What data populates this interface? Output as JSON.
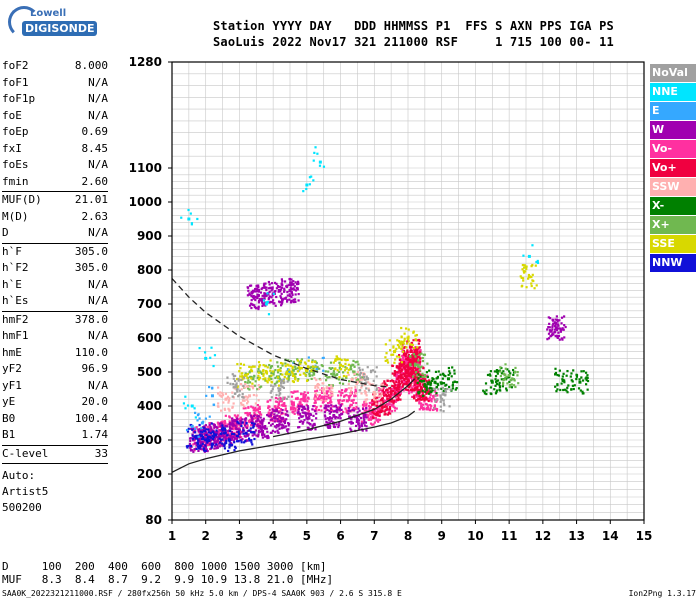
{
  "logo": {
    "line1": "Lowell",
    "line2": "DIGISONDE"
  },
  "header": {
    "line1": "Station YYYY DAY   DDD HHMMSS P1  FFS S AXN PPS IGA PS",
    "line2": "SaoLuis 2022 Nov17 321 211000 RSF     1 715 100 00- 11"
  },
  "params": [
    {
      "name": "foF2",
      "value": "8.000"
    },
    {
      "name": "foF1",
      "value": "N/A"
    },
    {
      "name": "foF1p",
      "value": "N/A"
    },
    {
      "name": "foE",
      "value": "N/A"
    },
    {
      "name": "foEp",
      "value": "0.69"
    },
    {
      "name": "fxI",
      "value": "8.45"
    },
    {
      "name": "foEs",
      "value": "N/A"
    },
    {
      "name": "fmin",
      "value": "2.60"
    },
    {
      "sep": true
    },
    {
      "name": "MUF(D)",
      "value": "21.01"
    },
    {
      "name": "M(D)",
      "value": "2.63"
    },
    {
      "name": "D",
      "value": "N/A"
    },
    {
      "sep": true
    },
    {
      "name": "h`F",
      "value": "305.0"
    },
    {
      "name": "h`F2",
      "value": "305.0"
    },
    {
      "name": "h`E",
      "value": "N/A"
    },
    {
      "name": "h`Es",
      "value": "N/A"
    },
    {
      "sep": true
    },
    {
      "name": "hmF2",
      "value": "378.0"
    },
    {
      "name": "hmF1",
      "value": "N/A"
    },
    {
      "name": "hmE",
      "value": "110.0"
    },
    {
      "name": "yF2",
      "value": "96.9"
    },
    {
      "name": "yF1",
      "value": "N/A"
    },
    {
      "name": "yE",
      "value": "20.0"
    },
    {
      "name": "B0",
      "value": "100.4"
    },
    {
      "name": "B1",
      "value": "1.74"
    },
    {
      "sep": true
    },
    {
      "name": "C-level",
      "value": "33"
    },
    {
      "sep": true
    }
  ],
  "auto_lines": [
    "Auto:",
    "Artist5",
    "500200"
  ],
  "muf_table": {
    "d_label": "D",
    "d_values": "100  200  400  600  800 1000 1500 3000 [km]",
    "muf_label": "MUF",
    "muf_values": "8.3  8.4  8.7  9.2  9.9 10.9 13.8 21.0 [MHz]"
  },
  "footer": {
    "left": "SAA0K_2022321211000.RSF / 280fx256h 50 kHz 5.0 km / DPS-4 SAA0K 903 / 2.6 S 315.8 E",
    "right": "Ion2Png 1.3.17"
  },
  "legend": [
    {
      "label": "NoVal",
      "color": "#a0a0a0"
    },
    {
      "label": "NNE",
      "color": "#00e5ff"
    },
    {
      "label": "E",
      "color": "#35a8ff"
    },
    {
      "label": "W",
      "color": "#a000b0"
    },
    {
      "label": "Vo-",
      "color": "#ff30a0"
    },
    {
      "label": "Vo+",
      "color": "#f00040"
    },
    {
      "label": "SSW",
      "color": "#ffb0b0"
    },
    {
      "label": "X-",
      "color": "#008000"
    },
    {
      "label": "X+",
      "color": "#70b850"
    },
    {
      "label": "SSE",
      "color": "#d8d800"
    },
    {
      "label": "NNW",
      "color": "#1010d8"
    }
  ],
  "chart_data": {
    "type": "scatter",
    "title": "",
    "xlabel": "",
    "ylabel": "",
    "xlim": [
      1,
      15
    ],
    "ylim": [
      80,
      1280
    ],
    "x_ticks": [
      1,
      2,
      3,
      4,
      5,
      6,
      7,
      8,
      9,
      10,
      11,
      12,
      13,
      14,
      15
    ],
    "y_ticks": [
      80,
      200,
      300,
      400,
      500,
      600,
      700,
      800,
      900,
      1000,
      1100,
      1280
    ],
    "grid": true,
    "series": [
      {
        "name": "Vo-",
        "points": [
          [
            1.9,
            305
          ],
          [
            2.3,
            320
          ],
          [
            2.8,
            340
          ],
          [
            3.4,
            370
          ],
          [
            4.1,
            390
          ],
          [
            4.8,
            410
          ],
          [
            5.5,
            420
          ],
          [
            6.2,
            415
          ],
          [
            6.9,
            380
          ],
          [
            7.4,
            420
          ],
          [
            7.9,
            470
          ],
          [
            8.0,
            510
          ],
          [
            8.1,
            540
          ],
          [
            8.3,
            460
          ],
          [
            8.6,
            420
          ]
        ]
      },
      {
        "name": "Vo+",
        "points": [
          [
            7.2,
            400
          ],
          [
            7.5,
            440
          ],
          [
            7.8,
            490
          ],
          [
            8.0,
            520
          ],
          [
            8.1,
            560
          ],
          [
            8.2,
            480
          ],
          [
            8.4,
            450
          ]
        ]
      },
      {
        "name": "W",
        "points": [
          [
            1.8,
            300
          ],
          [
            2.1,
            310
          ],
          [
            2.5,
            315
          ],
          [
            3.0,
            330
          ],
          [
            3.6,
            340
          ],
          [
            4.2,
            355
          ],
          [
            5.0,
            365
          ],
          [
            5.8,
            370
          ],
          [
            6.5,
            360
          ],
          [
            3.5,
            720
          ],
          [
            4.0,
            730
          ],
          [
            4.5,
            740
          ],
          [
            12.4,
            630
          ]
        ]
      },
      {
        "name": "NNW",
        "points": [
          [
            1.7,
            310
          ],
          [
            2.0,
            300
          ],
          [
            2.3,
            315
          ],
          [
            2.7,
            300
          ],
          [
            3.2,
            320
          ]
        ]
      },
      {
        "name": "NNE",
        "points": [
          [
            1.5,
            950
          ],
          [
            1.6,
            400
          ],
          [
            2.0,
            540
          ],
          [
            3.8,
            700
          ],
          [
            5.0,
            1050
          ],
          [
            11.6,
            840
          ],
          [
            5.4,
            1110
          ]
        ]
      },
      {
        "name": "E",
        "points": [
          [
            1.6,
            340
          ],
          [
            1.9,
            350
          ],
          [
            2.2,
            430
          ],
          [
            4.5,
            500
          ],
          [
            5.3,
            510
          ]
        ]
      },
      {
        "name": "X-",
        "points": [
          [
            8.5,
            460
          ],
          [
            8.8,
            470
          ],
          [
            9.2,
            480
          ],
          [
            10.5,
            470
          ],
          [
            10.9,
            480
          ],
          [
            12.6,
            475
          ],
          [
            13.1,
            470
          ]
        ]
      },
      {
        "name": "X+",
        "points": [
          [
            3.4,
            480
          ],
          [
            4.0,
            500
          ],
          [
            4.6,
            505
          ],
          [
            5.2,
            500
          ],
          [
            5.8,
            495
          ],
          [
            6.4,
            500
          ],
          [
            8.3,
            520
          ],
          [
            11.0,
            490
          ]
        ]
      },
      {
        "name": "SSE",
        "points": [
          [
            3.2,
            490
          ],
          [
            3.8,
            500
          ],
          [
            4.4,
            495
          ],
          [
            5.0,
            505
          ],
          [
            6.0,
            520
          ],
          [
            7.6,
            560
          ],
          [
            8.0,
            600
          ],
          [
            11.6,
            780
          ]
        ]
      },
      {
        "name": "SSW",
        "points": [
          [
            2.6,
            420
          ],
          [
            3.3,
            430
          ],
          [
            5.5,
            450
          ],
          [
            6.5,
            470
          ],
          [
            7.0,
            440
          ]
        ]
      },
      {
        "name": "NoVal",
        "points": [
          [
            2.9,
            460
          ],
          [
            4.2,
            450
          ],
          [
            6.8,
            480
          ],
          [
            9.0,
            420
          ]
        ]
      }
    ],
    "curves": [
      {
        "style": "dashed",
        "points": [
          [
            1.0,
            775
          ],
          [
            1.5,
            720
          ],
          [
            2.0,
            675
          ],
          [
            3.0,
            605
          ],
          [
            4.0,
            550
          ],
          [
            5.0,
            510
          ],
          [
            6.0,
            478
          ],
          [
            7.0,
            460
          ],
          [
            7.5,
            455
          ]
        ]
      },
      {
        "style": "solid",
        "points": [
          [
            1.0,
            205
          ],
          [
            1.5,
            230
          ],
          [
            2.0,
            245
          ],
          [
            3.0,
            268
          ],
          [
            4.0,
            285
          ],
          [
            5.0,
            302
          ],
          [
            6.0,
            318
          ],
          [
            7.0,
            338
          ],
          [
            7.5,
            350
          ],
          [
            8.0,
            370
          ],
          [
            8.2,
            385
          ]
        ]
      },
      {
        "style": "solid",
        "points": [
          [
            4.0,
            310
          ],
          [
            5.0,
            330
          ],
          [
            6.0,
            355
          ],
          [
            7.0,
            390
          ],
          [
            7.5,
            420
          ],
          [
            8.0,
            460
          ],
          [
            8.2,
            480
          ]
        ]
      }
    ]
  }
}
